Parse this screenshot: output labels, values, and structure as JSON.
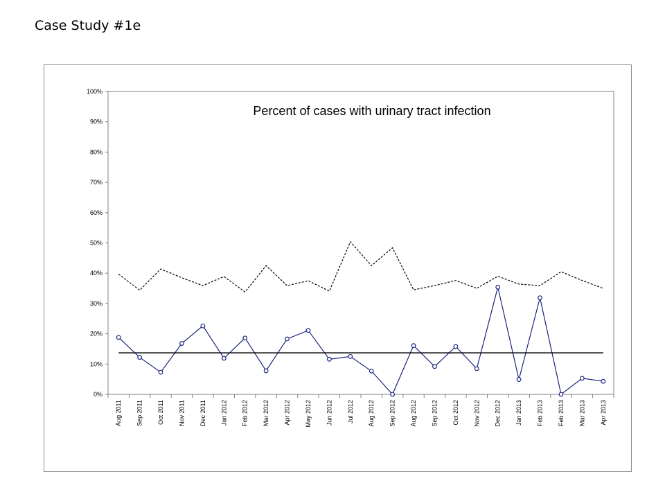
{
  "slide": {
    "title": "Case Study #1e"
  },
  "chart_data": {
    "type": "line",
    "title": "Percent of cases with urinary tract infection",
    "xlabel": "",
    "ylabel": "",
    "ylim": [
      0,
      100
    ],
    "yticks": [
      "0%",
      "10%",
      "20%",
      "30%",
      "40%",
      "50%",
      "60%",
      "70%",
      "80%",
      "90%",
      "100%"
    ],
    "categories": [
      "Aug 2011",
      "Sep 2011",
      "Oct 2011",
      "Nov 2011",
      "Dec 2011",
      "Jan 2012",
      "Feb 2012",
      "Mar 2012",
      "Apr 2012",
      "May 2012",
      "Jun 2012",
      "Jul 2012",
      "Aug 2012",
      "Sep 2012",
      "Aug 2012",
      "Sep 2012",
      "Oct 2012",
      "Nov 2012",
      "Dec 2012",
      "Jan 2013",
      "Feb 2013",
      "Feb 2013",
      "Mar 2013",
      "Apr 2013"
    ],
    "series": [
      {
        "values": [
          18.8,
          12.2,
          7.3,
          16.8,
          22.6,
          11.9,
          18.6,
          7.8,
          18.3,
          21.1,
          11.6,
          12.5,
          7.7,
          0,
          16.1,
          9.2,
          15.8,
          8.5,
          35.4,
          4.9,
          31.9,
          0,
          5.3,
          4.3
        ],
        "color": "#1a237e",
        "marker": "circle"
      },
      {
        "values": [
          39.7,
          34.4,
          41.4,
          38.5,
          35.9,
          38.9,
          33.8,
          42.5,
          35.9,
          37.5,
          34.1,
          50.4,
          42.5,
          48.4,
          34.5,
          35.9,
          37.6,
          35.0,
          39.0,
          36.4,
          35.9,
          40.5,
          37.6,
          35.0
        ],
        "color": "#000000",
        "dash": "3,2"
      },
      {
        "values": [
          13.7,
          13.7,
          13.7,
          13.7,
          13.7,
          13.7,
          13.7,
          13.7,
          13.7,
          13.7,
          13.7,
          13.7,
          13.7,
          13.7,
          13.7,
          13.7,
          13.7,
          13.7,
          13.7,
          13.7,
          13.7,
          13.7,
          13.7,
          13.7
        ],
        "color": "#000000"
      }
    ],
    "grid": false,
    "legend": "none"
  }
}
